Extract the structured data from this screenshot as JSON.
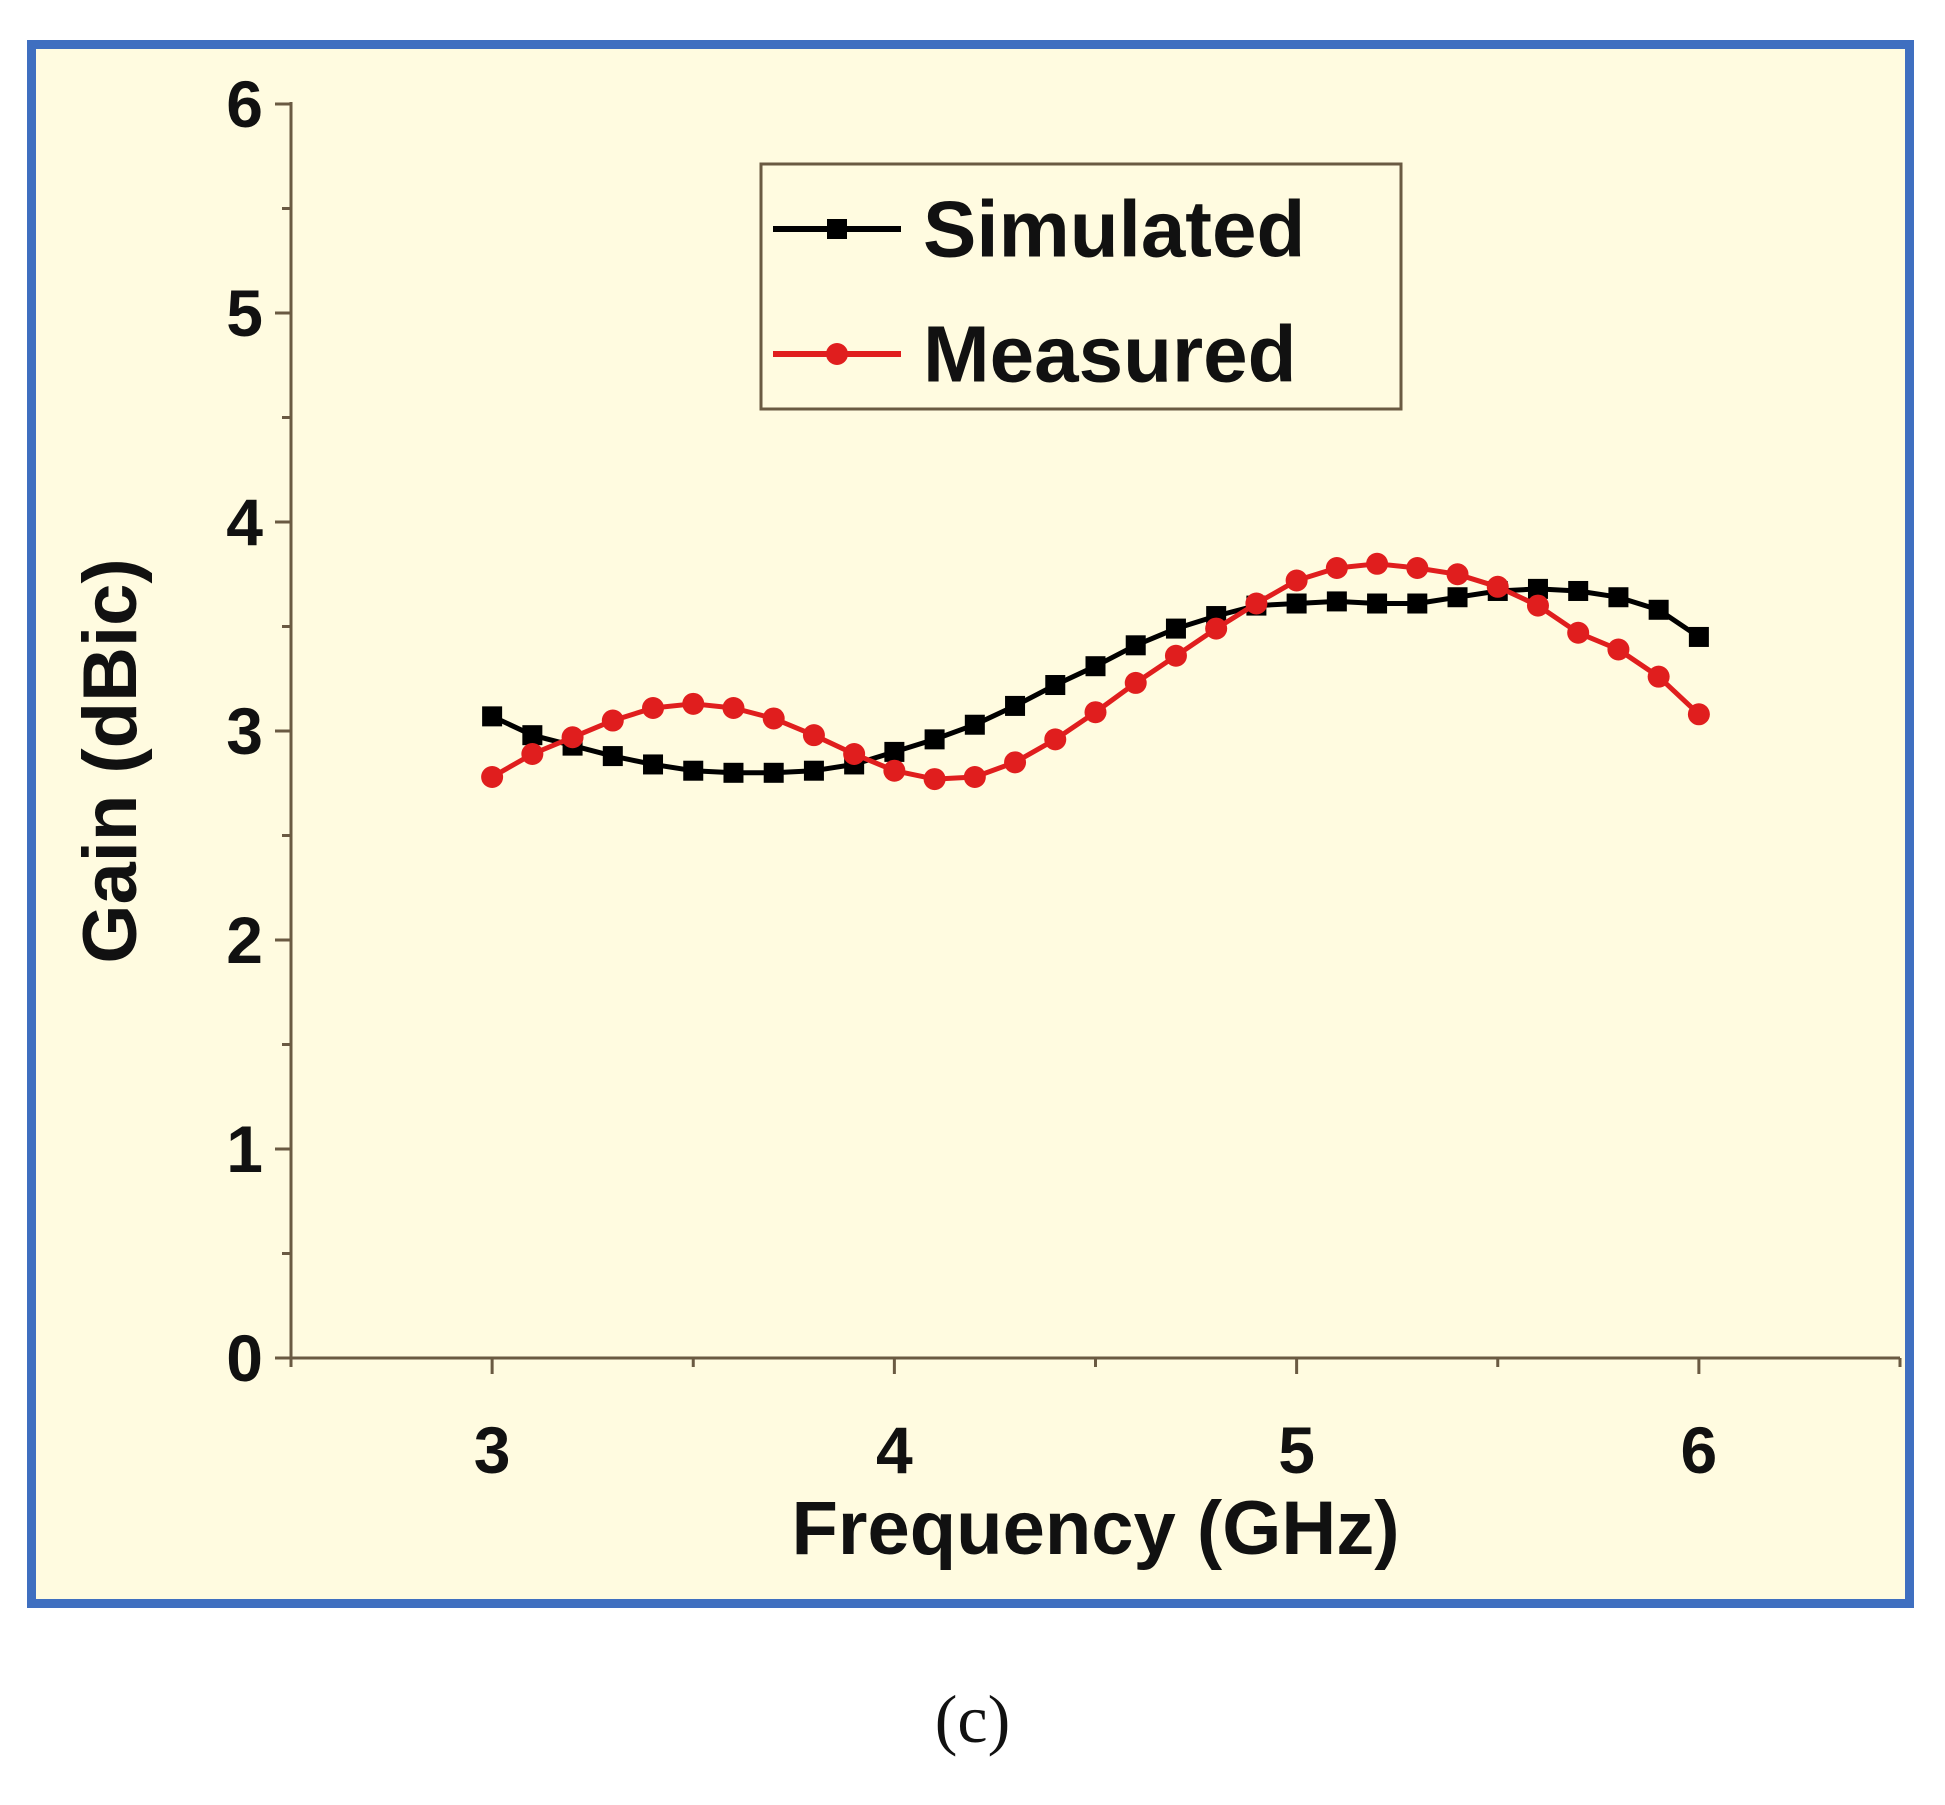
{
  "caption": "(c)",
  "chart_data": {
    "type": "line",
    "title": "",
    "xlabel": "Frequency (GHz)",
    "ylabel": "Gain (dBic)",
    "xlim": [
      2.5,
      6.5
    ],
    "ylim": [
      0,
      6
    ],
    "xticks": [
      3,
      4,
      5,
      6
    ],
    "xtick_labels": [
      "3",
      "4",
      "5",
      "6"
    ],
    "yticks": [
      0,
      1,
      2,
      3,
      4,
      5,
      6
    ],
    "ytick_labels": [
      "0",
      "1",
      "2",
      "3",
      "4",
      "5",
      "6"
    ],
    "grid": false,
    "legend_position": "top-center",
    "x": [
      3.0,
      3.1,
      3.2,
      3.3,
      3.4,
      3.5,
      3.6,
      3.7,
      3.8,
      3.9,
      4.0,
      4.1,
      4.2,
      4.3,
      4.4,
      4.5,
      4.6,
      4.7,
      4.8,
      4.9,
      5.0,
      5.1,
      5.2,
      5.3,
      5.4,
      5.5,
      5.6,
      5.7,
      5.8,
      5.9,
      6.0
    ],
    "series": [
      {
        "name": "Simulated",
        "color": "#000000",
        "marker": "square",
        "values": [
          3.07,
          2.98,
          2.93,
          2.88,
          2.84,
          2.81,
          2.8,
          2.8,
          2.81,
          2.84,
          2.9,
          2.96,
          3.03,
          3.12,
          3.22,
          3.31,
          3.41,
          3.49,
          3.55,
          3.6,
          3.61,
          3.62,
          3.61,
          3.61,
          3.64,
          3.67,
          3.68,
          3.67,
          3.64,
          3.58,
          3.45
        ]
      },
      {
        "name": "Measured",
        "color": "#e01e1e",
        "marker": "circle",
        "values": [
          2.78,
          2.89,
          2.97,
          3.05,
          3.11,
          3.13,
          3.11,
          3.06,
          2.98,
          2.89,
          2.81,
          2.77,
          2.78,
          2.85,
          2.96,
          3.09,
          3.23,
          3.36,
          3.49,
          3.61,
          3.72,
          3.78,
          3.8,
          3.78,
          3.75,
          3.69,
          3.6,
          3.47,
          3.39,
          3.26,
          3.08
        ]
      }
    ]
  },
  "colors": {
    "panel_background": "#fffbe0",
    "panel_border": "#3f6fc0",
    "axis": "#6a5a42",
    "text": "#111111"
  }
}
